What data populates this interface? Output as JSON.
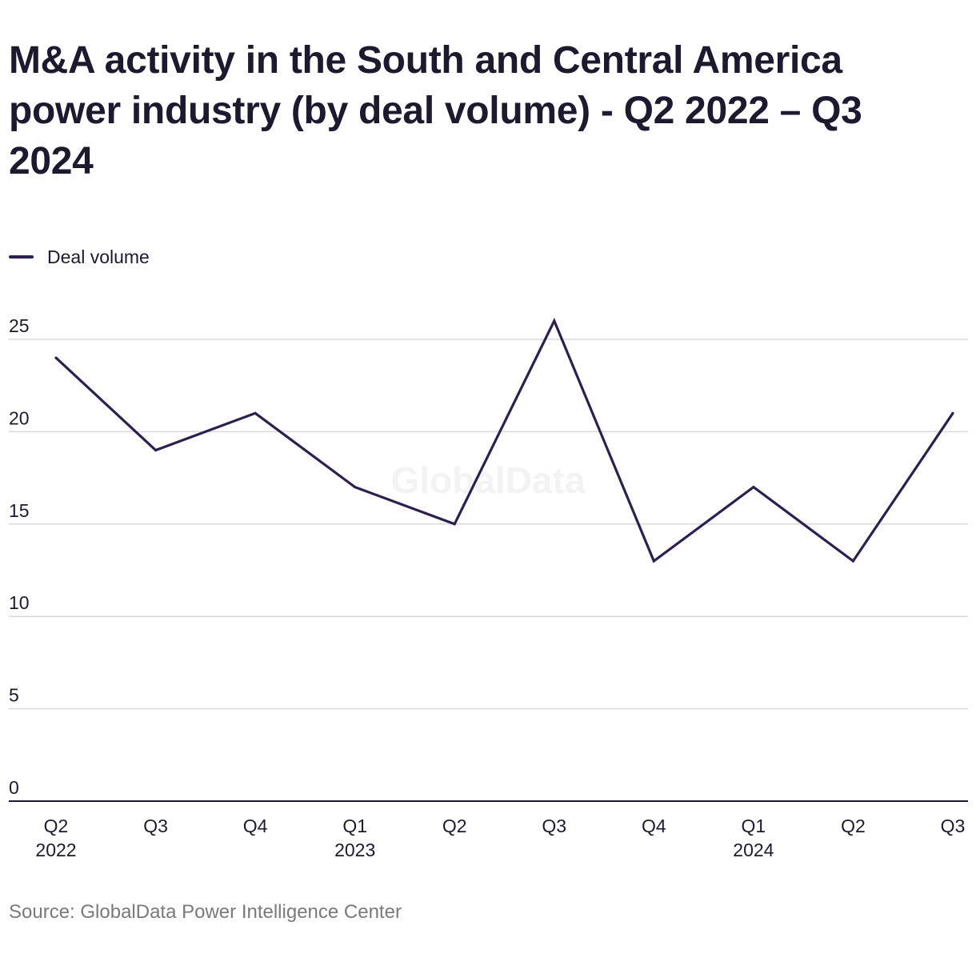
{
  "title": "M&A activity in the South and Central America power industry (by deal volume) - Q2 2022 – Q3 2024",
  "legend": {
    "series_label": "Deal volume"
  },
  "watermark": "GlobalData",
  "source": "Source: GlobalData Power Intelligence Center",
  "colors": {
    "series": "#2d1f4e",
    "grid": "#d9d9d9",
    "axis": "#1c1a2e",
    "text": "#1c1a2e",
    "source_text": "#7a7a7a"
  },
  "chart_data": {
    "type": "line",
    "x": [
      "Q2 2022",
      "Q3 2022",
      "Q4 2022",
      "Q1 2023",
      "Q2 2023",
      "Q3 2023",
      "Q4 2023",
      "Q1 2024",
      "Q2 2024",
      "Q3 2024"
    ],
    "x_tick_labels": [
      {
        "quarter": "Q2",
        "year": "2022"
      },
      {
        "quarter": "Q3",
        "year": ""
      },
      {
        "quarter": "Q4",
        "year": ""
      },
      {
        "quarter": "Q1",
        "year": "2023"
      },
      {
        "quarter": "Q2",
        "year": ""
      },
      {
        "quarter": "Q3",
        "year": ""
      },
      {
        "quarter": "Q4",
        "year": ""
      },
      {
        "quarter": "Q1",
        "year": "2024"
      },
      {
        "quarter": "Q2",
        "year": ""
      },
      {
        "quarter": "Q3",
        "year": ""
      }
    ],
    "series": [
      {
        "name": "Deal volume",
        "values": [
          24,
          19,
          21,
          17,
          15,
          26,
          13,
          17,
          13,
          21
        ]
      }
    ],
    "ylim": [
      0,
      25
    ],
    "yticks": [
      0,
      5,
      10,
      15,
      20,
      25
    ],
    "grid": true,
    "legend_position": "top-left"
  }
}
